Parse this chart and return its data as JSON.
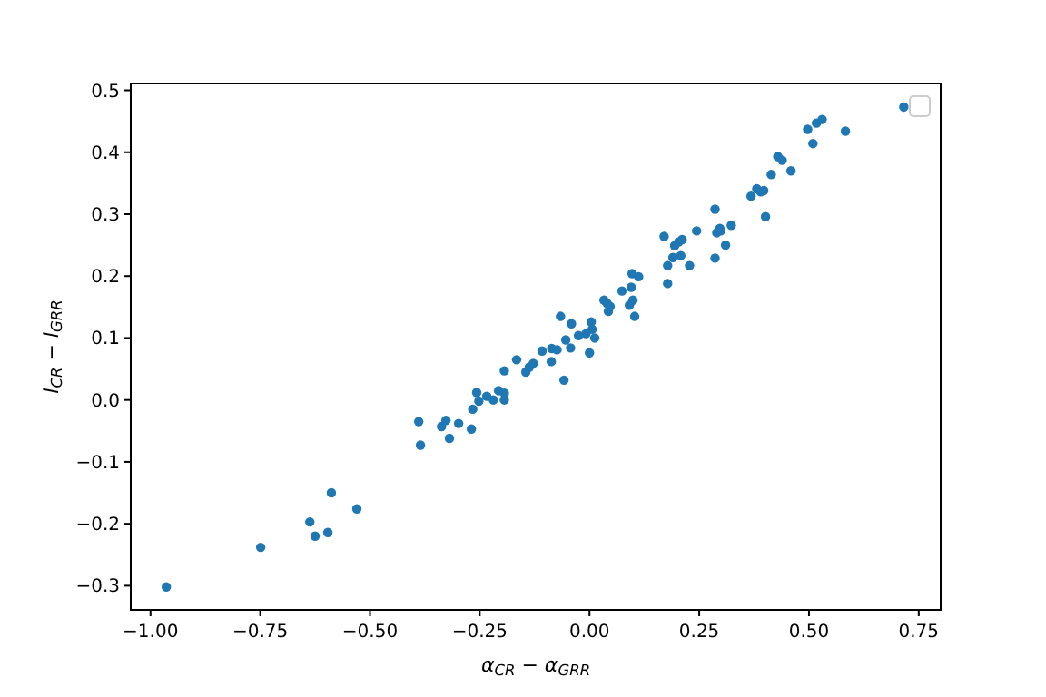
{
  "chart_data": {
    "type": "scatter",
    "xlabel": "α$_{CR}$ − α$_{GRR}$",
    "ylabel": "l$_{CR}$ − l$_{GRR}$",
    "xlim": [
      -1.045,
      0.8
    ],
    "ylim": [
      -0.339,
      0.511
    ],
    "xticks": [
      {
        "value": -1,
        "label": "−1.00"
      },
      {
        "value": -0.75,
        "label": "−0.75"
      },
      {
        "value": -0.5,
        "label": "−0.50"
      },
      {
        "value": -0.25,
        "label": "−0.25"
      },
      {
        "value": 0,
        "label": "0.00"
      },
      {
        "value": 0.25,
        "label": "0.25"
      },
      {
        "value": 0.5,
        "label": "0.50"
      },
      {
        "value": 0.75,
        "label": "0.75"
      }
    ],
    "yticks": [
      {
        "value": -0.3,
        "label": "−0.3"
      },
      {
        "value": -0.2,
        "label": "−0.2"
      },
      {
        "value": -0.1,
        "label": "−0.1"
      },
      {
        "value": 0,
        "label": "0.0"
      },
      0.1,
      0.2,
      0.3,
      0.4,
      0.5
    ],
    "grid": false,
    "marker": "circle",
    "series": [
      {
        "color": "#1f77b4",
        "x": [
          -0.964,
          -0.749,
          -0.637,
          -0.625,
          -0.596,
          -0.588,
          -0.53,
          -0.389,
          -0.385,
          -0.337,
          -0.327,
          -0.319,
          -0.298,
          -0.269,
          -0.266,
          -0.257,
          -0.252,
          -0.234,
          -0.219,
          -0.207,
          -0.194,
          -0.194,
          -0.194,
          -0.166,
          -0.145,
          -0.137,
          -0.128,
          -0.108,
          -0.087,
          -0.086,
          -0.074,
          -0.066,
          -0.058,
          -0.054,
          -0.041,
          -0.043,
          -0.025,
          -0.008,
          0.0,
          0.004,
          0.006,
          0.012,
          0.033,
          0.04,
          0.043,
          0.047,
          0.074,
          0.091,
          0.095,
          0.097,
          0.099,
          0.103,
          0.112,
          0.17,
          0.178,
          0.178,
          0.19,
          0.194,
          0.203,
          0.211,
          0.208,
          0.228,
          0.244,
          0.286,
          0.286,
          0.29,
          0.297,
          0.299,
          0.31,
          0.323,
          0.368,
          0.381,
          0.39,
          0.397,
          0.401,
          0.414,
          0.429,
          0.439,
          0.459,
          0.497,
          0.509,
          0.517,
          0.53,
          0.583,
          0.716
        ],
        "values": [
          -0.302,
          -0.238,
          -0.197,
          -0.22,
          -0.214,
          -0.15,
          -0.176,
          -0.035,
          -0.073,
          -0.043,
          -0.033,
          -0.062,
          -0.038,
          -0.047,
          -0.015,
          0.012,
          -0.002,
          0.006,
          0.0,
          0.015,
          0.011,
          0.0,
          0.047,
          0.065,
          0.045,
          0.053,
          0.059,
          0.079,
          0.062,
          0.083,
          0.081,
          0.135,
          0.032,
          0.097,
          0.123,
          0.084,
          0.104,
          0.107,
          0.076,
          0.126,
          0.114,
          0.1,
          0.161,
          0.156,
          0.143,
          0.151,
          0.176,
          0.153,
          0.182,
          0.204,
          0.161,
          0.135,
          0.199,
          0.264,
          0.217,
          0.188,
          0.23,
          0.249,
          0.255,
          0.259,
          0.233,
          0.217,
          0.273,
          0.308,
          0.229,
          0.27,
          0.277,
          0.273,
          0.25,
          0.282,
          0.329,
          0.341,
          0.336,
          0.338,
          0.296,
          0.364,
          0.393,
          0.387,
          0.37,
          0.437,
          0.414,
          0.447,
          0.453,
          0.434,
          0.473
        ]
      }
    ]
  }
}
